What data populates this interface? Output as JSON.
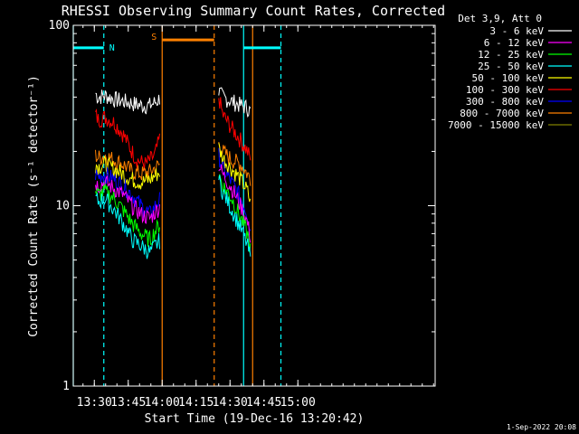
{
  "chart_data": {
    "type": "line",
    "title": "RHESSI Observing Summary Count Rates, Corrected",
    "xlabel": "Start Time (19-Dec-16 13:20:42)",
    "ylabel": "Corrected Count Rate (s⁻¹ detector⁻¹)",
    "footer": "1-Sep-2022 20:08",
    "yscale": "log",
    "ylim": [
      1,
      100
    ],
    "xlim_min": [
      0,
      160
    ],
    "x_ticks": [
      {
        "min": 9.3,
        "label": "13:30"
      },
      {
        "min": 24.3,
        "label": "13:45"
      },
      {
        "min": 39.3,
        "label": "14:00"
      },
      {
        "min": 54.3,
        "label": "14:15"
      },
      {
        "min": 69.3,
        "label": "14:30"
      },
      {
        "min": 84.3,
        "label": "14:45"
      },
      {
        "min": 99.3,
        "label": "15:00"
      }
    ],
    "y_ticks": [
      {
        "value": 1,
        "label": "1"
      },
      {
        "value": 10,
        "label": "10"
      },
      {
        "value": 100,
        "label": "100"
      }
    ],
    "legend": {
      "position": "top-right",
      "header": "Det 3,9, Att 0",
      "entries": [
        {
          "label": "3 - 6 keV",
          "color": "#ffffff"
        },
        {
          "label": "6 - 12 keV",
          "color": "#ff00ff"
        },
        {
          "label": "12 - 25 keV",
          "color": "#00ff00"
        },
        {
          "label": "25 - 50 keV",
          "color": "#00ffff"
        },
        {
          "label": "50 - 100 keV",
          "color": "#ffff00"
        },
        {
          "label": "100 - 300 keV",
          "color": "#ff0000"
        },
        {
          "label": "300 - 800 keV",
          "color": "#0000ff"
        },
        {
          "label": "800 - 7000 keV",
          "color": "#ff8000"
        },
        {
          "label": "7000 - 15000 keV",
          "color": "#808000"
        }
      ]
    },
    "series": [
      {
        "name": "3 - 6 keV",
        "color": "#ffffff",
        "segments": [
          {
            "x": [
              9.8,
              11,
              14,
              18,
              22,
              26,
              30,
              34,
              37,
              38.5
            ],
            "y": [
              42,
              40,
              41,
              39,
              38,
              37,
              36,
              36,
              38,
              40
            ]
          },
          {
            "x": [
              64.3,
              66,
              70,
              74,
              77,
              78.5
            ],
            "y": [
              43,
              40,
              38,
              36,
              35,
              33
            ]
          }
        ]
      },
      {
        "name": "100 - 300 keV",
        "color": "#ff0000",
        "segments": [
          {
            "x": [
              9.8,
              11,
              14,
              18,
              22,
              25,
              28,
              32,
              36,
              38.5
            ],
            "y": [
              32,
              30,
              31,
              29,
              25,
              21,
              18,
              17,
              19,
              24
            ]
          },
          {
            "x": [
              64.3,
              66,
              70,
              74,
              77,
              78.5
            ],
            "y": [
              40,
              32,
              27,
              23,
              20,
              18
            ]
          }
        ]
      },
      {
        "name": "800 - 7000 keV",
        "color": "#ff8000",
        "segments": [
          {
            "x": [
              9.8,
              11,
              14,
              18,
              22,
              26,
              30,
              34,
              38.5
            ],
            "y": [
              19,
              18.5,
              19,
              18,
              17,
              15.5,
              15,
              15.5,
              17
            ]
          },
          {
            "x": [
              64.3,
              66,
              70,
              74,
              77,
              78.5
            ],
            "y": [
              22,
              20,
              18,
              17,
              15,
              14
            ]
          }
        ]
      },
      {
        "name": "50 - 100 keV",
        "color": "#ffff00",
        "segments": [
          {
            "x": [
              9.8,
              11,
              14,
              18,
              22,
              26,
              30,
              34,
              38.5
            ],
            "y": [
              17,
              16.5,
              17,
              16,
              15,
              14,
              13.5,
              14,
              15.5
            ]
          },
          {
            "x": [
              64.3,
              66,
              70,
              74,
              77,
              78.5
            ],
            "y": [
              21,
              18.5,
              16,
              14,
              12,
              10
            ]
          }
        ]
      },
      {
        "name": "300 - 800 keV",
        "color": "#0000ff",
        "segments": [
          {
            "x": [
              9.8,
              11,
              14,
              18,
              22,
              26,
              30,
              34,
              38.5
            ],
            "y": [
              15,
              14.5,
              15,
              14,
              13,
              11.5,
              10,
              9,
              11
            ]
          },
          {
            "x": [
              64.3,
              66,
              70,
              74,
              77,
              78.5
            ],
            "y": [
              19,
              16,
              13.5,
              11,
              9,
              7
            ]
          }
        ]
      },
      {
        "name": "6 - 12 keV",
        "color": "#ff00ff",
        "segments": [
          {
            "x": [
              9.8,
              11,
              14,
              18,
              22,
              26,
              30,
              34,
              38.5
            ],
            "y": [
              13.5,
              13,
              13.5,
              12.5,
              11.5,
              10,
              9,
              8.5,
              10
            ]
          },
          {
            "x": [
              64.3,
              66,
              70,
              74,
              77,
              78.5
            ],
            "y": [
              17,
              15,
              12.5,
              10,
              8,
              6.5
            ]
          }
        ]
      },
      {
        "name": "12 - 25 keV",
        "color": "#00ff00",
        "segments": [
          {
            "x": [
              9.8,
              11,
              14,
              18,
              22,
              26,
              30,
              34,
              38.5
            ],
            "y": [
              12,
              11.5,
              12,
              11,
              9.5,
              8,
              7,
              6.5,
              8
            ]
          },
          {
            "x": [
              64.3,
              66,
              70,
              74,
              77,
              78.5
            ],
            "y": [
              15,
              13,
              11,
              8.5,
              7,
              5.5
            ]
          }
        ]
      },
      {
        "name": "25 - 50 keV",
        "color": "#00ffff",
        "segments": [
          {
            "x": [
              9.8,
              11,
              14,
              18,
              22,
              26,
              30,
              34,
              38.5
            ],
            "y": [
              11,
              10.5,
              11,
              9.5,
              8,
              6.5,
              6,
              5.5,
              6.5
            ]
          },
          {
            "x": [
              64.3,
              66,
              70,
              74,
              77,
              78.5
            ],
            "y": [
              14,
              12,
              9.5,
              7.5,
              6,
              5
            ]
          }
        ]
      }
    ],
    "annotations": {
      "vlines": [
        {
          "x": 0,
          "color": "#00ffff",
          "style": "solid"
        },
        {
          "x": 13.5,
          "color": "#00ffff",
          "style": "dashed"
        },
        {
          "x": 39.3,
          "color": "#ff8000",
          "style": "solid"
        },
        {
          "x": 62.3,
          "color": "#ff8000",
          "style": "dashed"
        },
        {
          "x": 75.3,
          "color": "#00ffff",
          "style": "solid"
        },
        {
          "x": 79.3,
          "color": "#ff8000",
          "style": "solid"
        },
        {
          "x": 91.8,
          "color": "#00ffff",
          "style": "dashed"
        }
      ],
      "bars": [
        {
          "x": [
            0,
            13.5
          ],
          "y": 75,
          "color": "#00ffff",
          "label": "N"
        },
        {
          "x": 39.3,
          "color": "#ff8000",
          "label": "S"
        },
        {
          "x": [
            39.3,
            62.3
          ],
          "y": 83,
          "color": "#ff8000"
        },
        {
          "x": [
            75.3,
            91.8
          ],
          "y": 75,
          "color": "#00ffff"
        }
      ]
    }
  }
}
